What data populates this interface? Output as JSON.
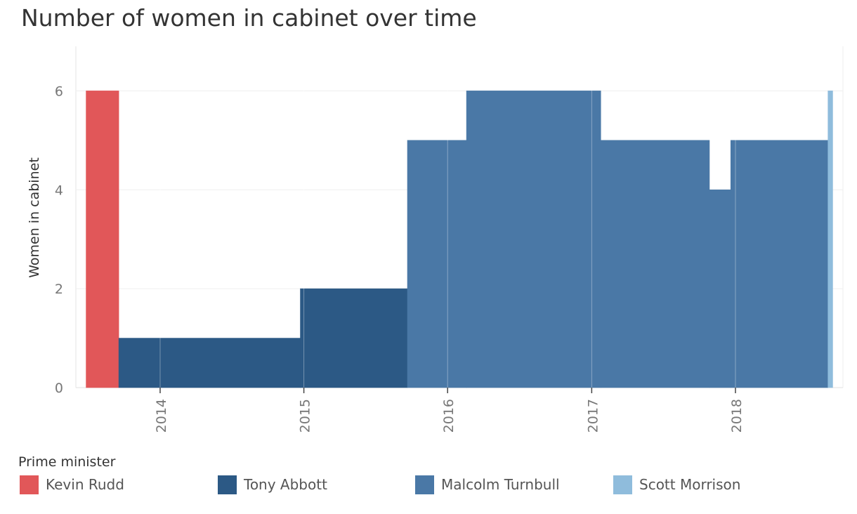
{
  "chart_data": {
    "type": "bar",
    "title": "Number of women in cabinet over time",
    "ylabel": "Women in cabinet",
    "xlabel": "",
    "ylim": [
      0,
      6.9
    ],
    "yticks": [
      0,
      2,
      4,
      6
    ],
    "xticks": [
      "2014",
      "2015",
      "2016",
      "2017",
      "2018"
    ],
    "xdomain": [
      "2013-06-01",
      "2018-10-01"
    ],
    "grid": true,
    "legend_title": "Prime minister",
    "legend_position": "bottom",
    "bars": [
      {
        "pm": "Kevin Rudd",
        "start": "2013-06-27",
        "end": "2013-09-18",
        "value": 6
      },
      {
        "pm": "Tony Abbott",
        "start": "2013-09-18",
        "end": "2014-12-23",
        "value": 1
      },
      {
        "pm": "Tony Abbott",
        "start": "2014-12-23",
        "end": "2015-09-21",
        "value": 2
      },
      {
        "pm": "Malcolm Turnbull",
        "start": "2015-09-21",
        "end": "2016-02-18",
        "value": 5
      },
      {
        "pm": "Malcolm Turnbull",
        "start": "2016-02-18",
        "end": "2017-01-24",
        "value": 6
      },
      {
        "pm": "Malcolm Turnbull",
        "start": "2017-01-24",
        "end": "2017-10-27",
        "value": 5
      },
      {
        "pm": "Malcolm Turnbull",
        "start": "2017-10-27",
        "end": "2017-12-20",
        "value": 4
      },
      {
        "pm": "Malcolm Turnbull",
        "start": "2017-12-20",
        "end": "2018-08-24",
        "value": 5
      },
      {
        "pm": "Scott Morrison",
        "start": "2018-08-24",
        "end": "2018-09-05",
        "value": 6
      }
    ],
    "series": [
      {
        "name": "Kevin Rudd",
        "color": "#e15759"
      },
      {
        "name": "Tony Abbott",
        "color": "#2c5985"
      },
      {
        "name": "Malcolm Turnbull",
        "color": "#4a78a6"
      },
      {
        "name": "Scott Morrison",
        "color": "#8fbcdc"
      }
    ]
  }
}
